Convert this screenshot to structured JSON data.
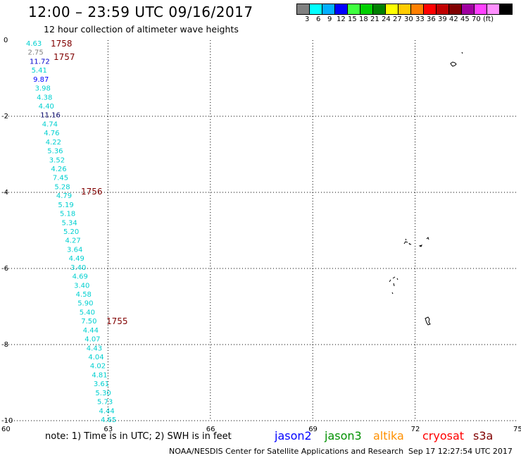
{
  "header": {
    "title": "12:00 – 23:59 UTC 09/16/2017",
    "subtitle": "12 hour collection of altimeter wave heights"
  },
  "legend": {
    "colors": [
      "#808080",
      "#00ffff",
      "#00b0ff",
      "#0000ff",
      "#40ff40",
      "#00d000",
      "#008000",
      "#ffff00",
      "#ffcc00",
      "#ff8000",
      "#ff0000",
      "#c00000",
      "#800000",
      "#a000a0",
      "#ff40ff",
      "#ff90ff",
      "#000000"
    ],
    "labels": [
      "3",
      "6",
      "9",
      "12",
      "15",
      "18",
      "21",
      "24",
      "27",
      "30",
      "33",
      "36",
      "39",
      "42",
      "45",
      "70",
      "(ft)"
    ]
  },
  "axes": {
    "lat_labels": [
      "0",
      "-2",
      "-4",
      "-6",
      "-8",
      "-10"
    ],
    "lon_labels": [
      "60",
      "63",
      "66",
      "69",
      "72",
      "75"
    ]
  },
  "wave_heights": [
    {
      "v": "4.63",
      "c": "#00d0d0"
    },
    {
      "v": "2.75",
      "c": "#808080"
    },
    {
      "v": "11.72",
      "c": "#0000cc"
    },
    {
      "v": "5.41",
      "c": "#00d0d0"
    },
    {
      "v": "9.87",
      "c": "#0000ff"
    },
    {
      "v": "3.98",
      "c": "#00d0d0"
    },
    {
      "v": "4.38",
      "c": "#00d0d0"
    },
    {
      "v": "4.40",
      "c": "#00d0d0"
    },
    {
      "v": "11.16",
      "c": "#000066"
    },
    {
      "v": "4.74",
      "c": "#00d0d0"
    },
    {
      "v": "4.76",
      "c": "#00d0d0"
    },
    {
      "v": "4.22",
      "c": "#00d0d0"
    },
    {
      "v": "5.36",
      "c": "#00d0d0"
    },
    {
      "v": "3.52",
      "c": "#00d0d0"
    },
    {
      "v": "4.26",
      "c": "#00d0d0"
    },
    {
      "v": "7.45",
      "c": "#00d0d0"
    },
    {
      "v": "5.28",
      "c": "#00d0d0"
    },
    {
      "v": "4.79",
      "c": "#00d0d0"
    },
    {
      "v": "5.19",
      "c": "#00d0d0"
    },
    {
      "v": "5.18",
      "c": "#00d0d0"
    },
    {
      "v": "5.34",
      "c": "#00d0d0"
    },
    {
      "v": "5.20",
      "c": "#00d0d0"
    },
    {
      "v": "4.27",
      "c": "#00d0d0"
    },
    {
      "v": "3.64",
      "c": "#00d0d0"
    },
    {
      "v": "4.49",
      "c": "#00d0d0"
    },
    {
      "v": "3.40",
      "c": "#00d0d0"
    },
    {
      "v": "4.69",
      "c": "#00d0d0"
    },
    {
      "v": "3.40",
      "c": "#00d0d0"
    },
    {
      "v": "4.58",
      "c": "#00d0d0"
    },
    {
      "v": "5.90",
      "c": "#00d0d0"
    },
    {
      "v": "5.40",
      "c": "#00d0d0"
    },
    {
      "v": "7.50",
      "c": "#00d0d0"
    },
    {
      "v": "4.44",
      "c": "#00d0d0"
    },
    {
      "v": "4.07",
      "c": "#00d0d0"
    },
    {
      "v": "4.43",
      "c": "#00d0d0"
    },
    {
      "v": "4.04",
      "c": "#00d0d0"
    },
    {
      "v": "4.02",
      "c": "#00d0d0"
    },
    {
      "v": "4.81",
      "c": "#00d0d0"
    },
    {
      "v": "3.61",
      "c": "#00d0d0"
    },
    {
      "v": "5.30",
      "c": "#00d0d0"
    },
    {
      "v": "5.73",
      "c": "#00d0d0"
    },
    {
      "v": "4.44",
      "c": "#00d0d0"
    },
    {
      "v": "4.65",
      "c": "#00d0d0"
    }
  ],
  "time_labels": [
    "1758",
    "1757",
    "1756",
    "1755"
  ],
  "time_color": "#800000",
  "note": "note:  1) Time is in UTC;  2) SWH is in feet",
  "satellites": [
    {
      "name": "jason2",
      "color": "#0000ff"
    },
    {
      "name": "jason3",
      "color": "#009000"
    },
    {
      "name": "altika",
      "color": "#ff9000"
    },
    {
      "name": "cryosat",
      "color": "#ff0000"
    },
    {
      "name": "s3a",
      "color": "#800000"
    }
  ],
  "footer": {
    "agency": "NOAA/NESDIS Center for Satellite Applications and Research",
    "timestamp": "Sep 17 12:27:54 UTC 2017"
  }
}
